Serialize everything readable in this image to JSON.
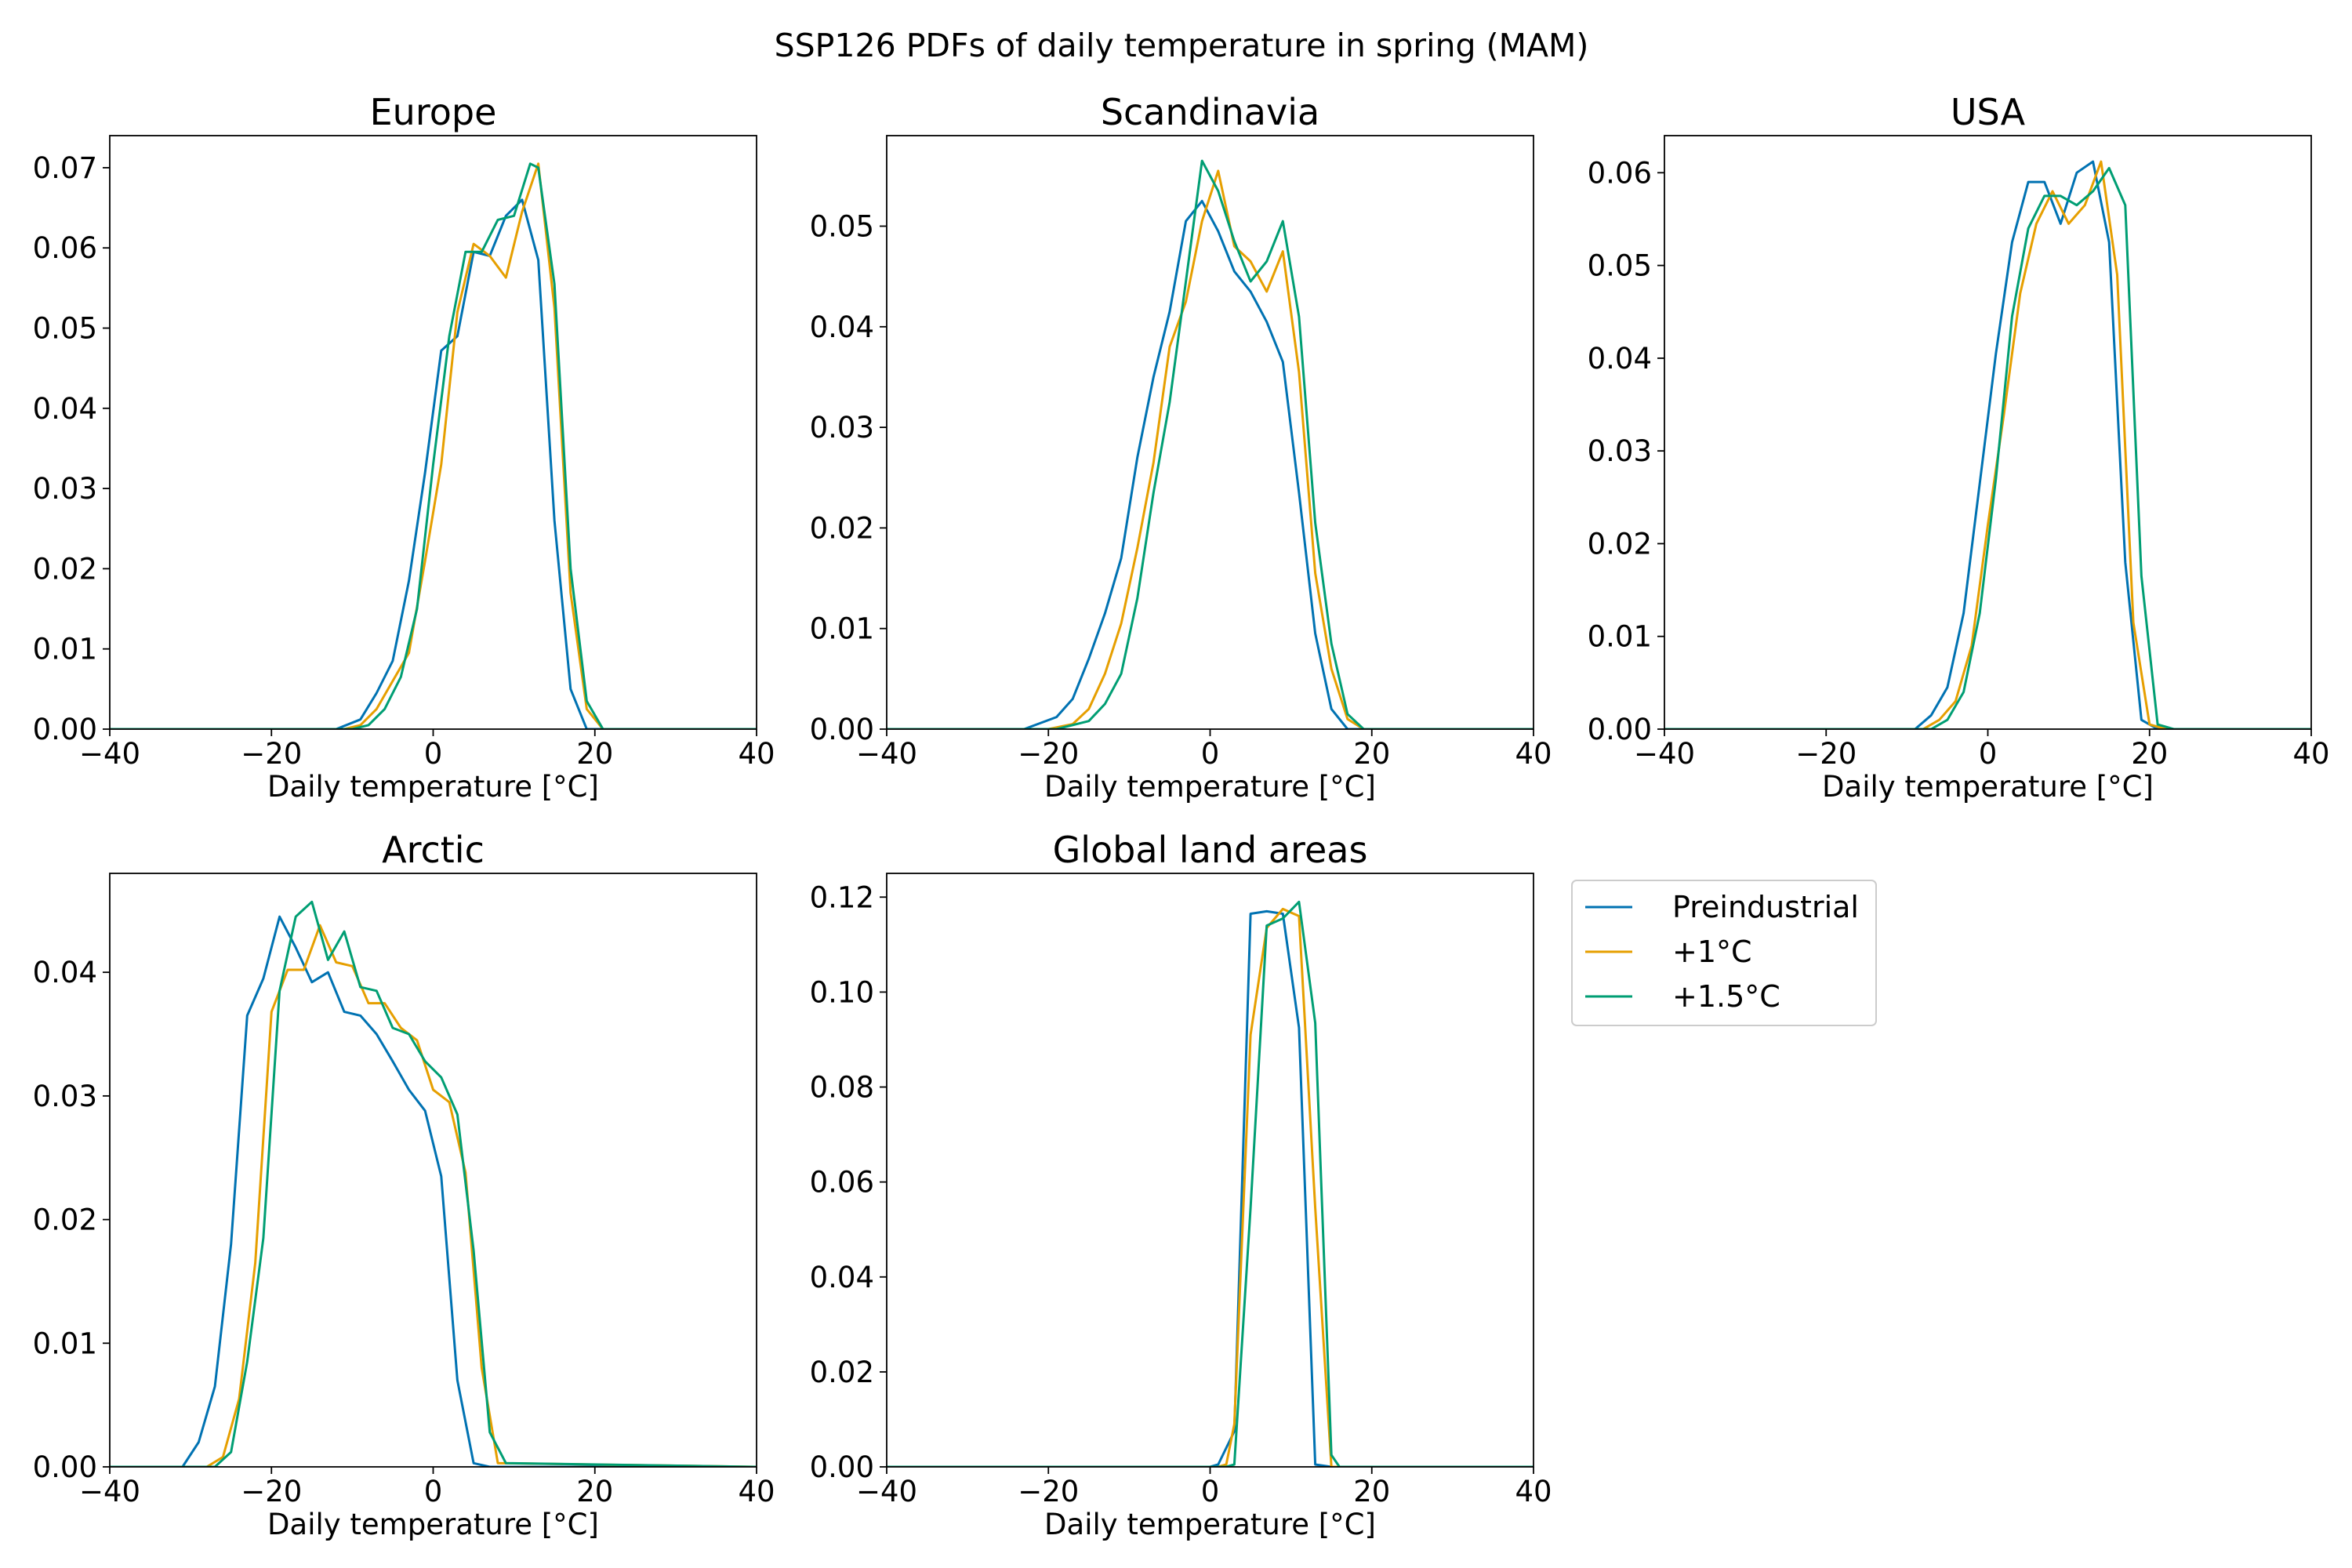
{
  "figure": {
    "suptitle": "SSP126 PDFs of daily temperature in spring (MAM)"
  },
  "legend": {
    "position": "right of bottom row",
    "entries": [
      {
        "label": "Preindustrial",
        "color": "#0072b2"
      },
      {
        "label": "+1°C",
        "color": "#e69f00"
      },
      {
        "label": "+1.5°C",
        "color": "#009e73"
      }
    ]
  },
  "chart_data": [
    {
      "type": "line",
      "title": "Europe",
      "xlabel": "Daily temperature [°C]",
      "ylabel": "",
      "xlim": [
        -40,
        40
      ],
      "ylim": [
        0,
        0.074
      ],
      "xticks": [
        -40,
        -20,
        0,
        20,
        40
      ],
      "xtick_labels": [
        "−40",
        "−20",
        "0",
        "20",
        "40"
      ],
      "yticks": [
        0,
        0.01,
        0.02,
        0.03,
        0.04,
        0.05,
        0.06,
        0.07
      ],
      "ytick_labels": [
        "0.00",
        "0.01",
        "0.02",
        "0.03",
        "0.04",
        "0.05",
        "0.06",
        "0.07"
      ],
      "grid": false,
      "series": [
        {
          "name": "Preindustrial",
          "color": "#0072b2",
          "x": [
            -40,
            -12,
            -9,
            -7,
            -5,
            -3,
            -1,
            1,
            3,
            5,
            7,
            9,
            11,
            13,
            15,
            17,
            19,
            21,
            40
          ],
          "y": [
            0,
            0,
            0.0012,
            0.0045,
            0.0085,
            0.0185,
            0.032,
            0.0472,
            0.049,
            0.0595,
            0.059,
            0.064,
            0.066,
            0.0585,
            0.026,
            0.005,
            0,
            0,
            0
          ]
        },
        {
          "name": "+1°C",
          "color": "#e69f00",
          "x": [
            -40,
            -11,
            -9,
            -7,
            -5,
            -3,
            -1,
            1,
            3,
            5,
            7,
            9,
            11,
            13,
            15,
            17,
            19,
            21,
            40
          ],
          "y": [
            0,
            0,
            0.0005,
            0.0025,
            0.006,
            0.0095,
            0.021,
            0.033,
            0.052,
            0.0605,
            0.059,
            0.0563,
            0.0645,
            0.0705,
            0.0525,
            0.017,
            0.0025,
            0,
            0
          ]
        },
        {
          "name": "+1.5°C",
          "color": "#009e73",
          "x": [
            -40,
            -10,
            -8,
            -6,
            -4,
            -2,
            0,
            2,
            4,
            6,
            8,
            10,
            12,
            13,
            15,
            17,
            19,
            21,
            40
          ],
          "y": [
            0,
            0,
            0.0005,
            0.0025,
            0.0065,
            0.015,
            0.033,
            0.049,
            0.0595,
            0.0595,
            0.0635,
            0.064,
            0.0705,
            0.07,
            0.0555,
            0.02,
            0.0035,
            0,
            0
          ]
        }
      ]
    },
    {
      "type": "line",
      "title": "Scandinavia",
      "xlabel": "Daily temperature [°C]",
      "ylabel": "",
      "xlim": [
        -40,
        40
      ],
      "ylim": [
        0,
        0.059
      ],
      "xticks": [
        -40,
        -20,
        0,
        20,
        40
      ],
      "xtick_labels": [
        "−40",
        "−20",
        "0",
        "20",
        "40"
      ],
      "yticks": [
        0,
        0.01,
        0.02,
        0.03,
        0.04,
        0.05
      ],
      "ytick_labels": [
        "0.00",
        "0.01",
        "0.02",
        "0.03",
        "0.04",
        "0.05"
      ],
      "grid": false,
      "series": [
        {
          "name": "Preindustrial",
          "color": "#0072b2",
          "x": [
            -40,
            -23,
            -19,
            -17,
            -15,
            -13,
            -11,
            -9,
            -7,
            -5,
            -3,
            -1,
            1,
            3,
            5,
            7,
            9,
            11,
            13,
            15,
            17,
            40
          ],
          "y": [
            0,
            0,
            0.0012,
            0.003,
            0.007,
            0.0115,
            0.017,
            0.027,
            0.035,
            0.0415,
            0.0505,
            0.0525,
            0.0495,
            0.0455,
            0.0435,
            0.0405,
            0.0365,
            0.0235,
            0.0095,
            0.002,
            0,
            0
          ]
        },
        {
          "name": "+1°C",
          "color": "#e69f00",
          "x": [
            -40,
            -20,
            -17,
            -15,
            -13,
            -11,
            -9,
            -7,
            -5,
            -3,
            -1,
            1,
            3,
            5,
            7,
            9,
            11,
            13,
            15,
            17,
            19,
            40
          ],
          "y": [
            0,
            0,
            0.0005,
            0.002,
            0.0055,
            0.0105,
            0.018,
            0.0265,
            0.038,
            0.0425,
            0.0505,
            0.0555,
            0.048,
            0.0465,
            0.0435,
            0.0475,
            0.0355,
            0.0155,
            0.006,
            0.001,
            0,
            0
          ]
        },
        {
          "name": "+1.5°C",
          "color": "#009e73",
          "x": [
            -40,
            -19,
            -15,
            -13,
            -11,
            -9,
            -7,
            -5,
            -3,
            -1,
            1,
            3,
            5,
            7,
            9,
            11,
            13,
            15,
            17,
            19,
            40
          ],
          "y": [
            0,
            0,
            0.0008,
            0.0025,
            0.0055,
            0.013,
            0.0235,
            0.0325,
            0.0445,
            0.0565,
            0.0535,
            0.0485,
            0.0445,
            0.0465,
            0.0505,
            0.041,
            0.0205,
            0.0085,
            0.0015,
            0,
            0
          ]
        }
      ]
    },
    {
      "type": "line",
      "title": "USA",
      "xlabel": "Daily temperature [°C]",
      "ylabel": "",
      "xlim": [
        -40,
        40
      ],
      "ylim": [
        0,
        0.064
      ],
      "xticks": [
        -40,
        -20,
        0,
        20,
        40
      ],
      "xtick_labels": [
        "−40",
        "−20",
        "0",
        "20",
        "40"
      ],
      "yticks": [
        0,
        0.01,
        0.02,
        0.03,
        0.04,
        0.05,
        0.06
      ],
      "ytick_labels": [
        "0.00",
        "0.01",
        "0.02",
        "0.03",
        "0.04",
        "0.05",
        "0.06"
      ],
      "grid": false,
      "series": [
        {
          "name": "Preindustrial",
          "color": "#0072b2",
          "x": [
            -40,
            -9,
            -7,
            -5,
            -3,
            -1,
            1,
            3,
            5,
            7,
            9,
            11,
            13,
            15,
            17,
            19,
            21,
            40
          ],
          "y": [
            0,
            0,
            0.0015,
            0.0045,
            0.0125,
            0.0265,
            0.0405,
            0.0525,
            0.059,
            0.059,
            0.0545,
            0.06,
            0.0612,
            0.0525,
            0.018,
            0.001,
            0,
            0
          ]
        },
        {
          "name": "+1°C",
          "color": "#e69f00",
          "x": [
            -40,
            -8,
            -6,
            -4,
            -2,
            0,
            2,
            4,
            6,
            8,
            10,
            12,
            14,
            16,
            18,
            20,
            22,
            40
          ],
          "y": [
            0,
            0,
            0.001,
            0.003,
            0.009,
            0.022,
            0.034,
            0.047,
            0.0545,
            0.058,
            0.0545,
            0.0565,
            0.0612,
            0.049,
            0.0115,
            0.0005,
            0,
            0
          ]
        },
        {
          "name": "+1.5°C",
          "color": "#009e73",
          "x": [
            -40,
            -7,
            -5,
            -3,
            -1,
            1,
            3,
            5,
            7,
            9,
            11,
            13,
            15,
            17,
            19,
            21,
            23,
            40
          ],
          "y": [
            0,
            0,
            0.001,
            0.004,
            0.0125,
            0.027,
            0.0445,
            0.054,
            0.0575,
            0.0575,
            0.0565,
            0.058,
            0.0605,
            0.0565,
            0.0165,
            0.0005,
            0,
            0
          ]
        }
      ]
    },
    {
      "type": "line",
      "title": "Arctic",
      "xlabel": "Daily temperature [°C]",
      "ylabel": "",
      "xlim": [
        -40,
        40
      ],
      "ylim": [
        0,
        0.048
      ],
      "xticks": [
        -40,
        -20,
        0,
        20,
        40
      ],
      "xtick_labels": [
        "−40",
        "−20",
        "0",
        "20",
        "40"
      ],
      "yticks": [
        0,
        0.01,
        0.02,
        0.03,
        0.04
      ],
      "ytick_labels": [
        "0.00",
        "0.01",
        "0.02",
        "0.03",
        "0.04"
      ],
      "grid": false,
      "series": [
        {
          "name": "Preindustrial",
          "color": "#0072b2",
          "x": [
            -40,
            -31,
            -29,
            -27,
            -25,
            -23,
            -21,
            -19,
            -17,
            -15,
            -13,
            -11,
            -9,
            -7,
            -5,
            -3,
            -1,
            1,
            3,
            5,
            7,
            40
          ],
          "y": [
            0,
            0,
            0.002,
            0.0065,
            0.018,
            0.0365,
            0.0395,
            0.0445,
            0.042,
            0.0392,
            0.04,
            0.0368,
            0.0365,
            0.035,
            0.0328,
            0.0305,
            0.0288,
            0.0235,
            0.007,
            0.0003,
            0,
            0
          ]
        },
        {
          "name": "+1°C",
          "color": "#e69f00",
          "x": [
            -40,
            -28,
            -26,
            -24,
            -22,
            -20,
            -18,
            -16,
            -14,
            -12,
            -10,
            -8,
            -6,
            -4,
            -2,
            0,
            2,
            4,
            6,
            8,
            40
          ],
          "y": [
            0,
            0,
            0.0008,
            0.0055,
            0.0165,
            0.0368,
            0.0402,
            0.0402,
            0.0438,
            0.0408,
            0.0405,
            0.0375,
            0.0375,
            0.0355,
            0.0345,
            0.0305,
            0.0295,
            0.0238,
            0.008,
            0.0003,
            0
          ]
        },
        {
          "name": "+1.5°C",
          "color": "#009e73",
          "x": [
            -40,
            -27,
            -25,
            -23,
            -21,
            -19,
            -17,
            -15,
            -13,
            -11,
            -9,
            -7,
            -5,
            -3,
            -1,
            1,
            3,
            5,
            7,
            9,
            40
          ],
          "y": [
            0,
            0,
            0.0012,
            0.0085,
            0.0185,
            0.0385,
            0.0445,
            0.0457,
            0.041,
            0.0433,
            0.0388,
            0.0385,
            0.0355,
            0.035,
            0.0328,
            0.0315,
            0.0285,
            0.0175,
            0.0028,
            0.0003,
            0
          ]
        }
      ]
    },
    {
      "type": "line",
      "title": "Global land areas",
      "xlabel": "Daily temperature [°C]",
      "ylabel": "",
      "xlim": [
        -40,
        40
      ],
      "ylim": [
        0,
        0.125
      ],
      "xticks": [
        -40,
        -20,
        0,
        20,
        40
      ],
      "xtick_labels": [
        "−40",
        "−20",
        "0",
        "20",
        "40"
      ],
      "yticks": [
        0,
        0.02,
        0.04,
        0.06,
        0.08,
        0.1,
        0.12
      ],
      "ytick_labels": [
        "0.00",
        "0.02",
        "0.04",
        "0.06",
        "0.08",
        "0.10",
        "0.12"
      ],
      "grid": false,
      "series": [
        {
          "name": "Preindustrial",
          "color": "#0072b2",
          "x": [
            -40,
            0,
            1,
            3,
            5,
            7,
            9,
            11,
            13,
            15,
            40
          ],
          "y": [
            0,
            0,
            0.0005,
            0.0075,
            0.1165,
            0.117,
            0.1165,
            0.0925,
            0.0005,
            0,
            0
          ]
        },
        {
          "name": "+1°C",
          "color": "#e69f00",
          "x": [
            -40,
            1,
            2,
            3,
            5,
            7,
            9,
            11,
            13,
            15,
            40
          ],
          "y": [
            0,
            0,
            0.0005,
            0.009,
            0.091,
            0.1135,
            0.1175,
            0.116,
            0.0545,
            0,
            0
          ]
        },
        {
          "name": "+1.5°C",
          "color": "#009e73",
          "x": [
            -40,
            2,
            3,
            5,
            7,
            9,
            11,
            13,
            15,
            16,
            40
          ],
          "y": [
            0,
            0,
            0.0005,
            0.0545,
            0.114,
            0.1155,
            0.119,
            0.0935,
            0.0025,
            0,
            0
          ]
        }
      ]
    }
  ]
}
